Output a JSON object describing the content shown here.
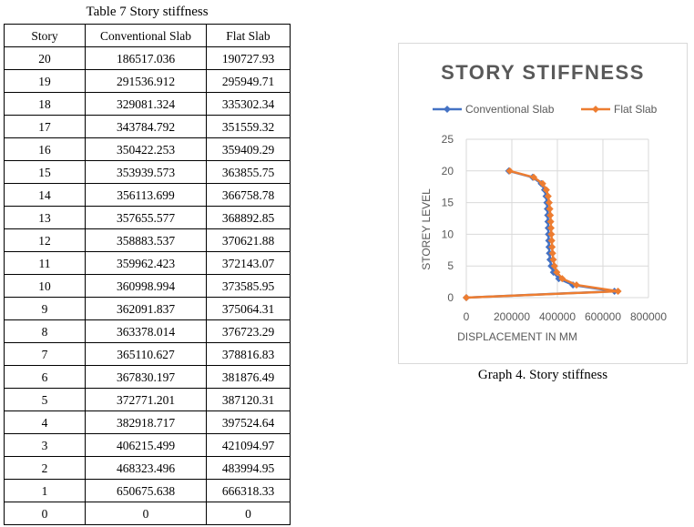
{
  "table": {
    "caption": "Table 7 Story stiffness",
    "headers": [
      "Story",
      "Conventional Slab",
      "Flat Slab"
    ],
    "rows": [
      [
        "20",
        "186517.036",
        "190727.93"
      ],
      [
        "19",
        "291536.912",
        "295949.71"
      ],
      [
        "18",
        "329081.324",
        "335302.34"
      ],
      [
        "17",
        "343784.792",
        "351559.32"
      ],
      [
        "16",
        "350422.253",
        "359409.29"
      ],
      [
        "15",
        "353939.573",
        "363855.75"
      ],
      [
        "14",
        "356113.699",
        "366758.78"
      ],
      [
        "13",
        "357655.577",
        "368892.85"
      ],
      [
        "12",
        "358883.537",
        "370621.88"
      ],
      [
        "11",
        "359962.423",
        "372143.07"
      ],
      [
        "10",
        "360998.994",
        "373585.95"
      ],
      [
        "9",
        "362091.837",
        "375064.31"
      ],
      [
        "8",
        "363378.014",
        "376723.29"
      ],
      [
        "7",
        "365110.627",
        "378816.83"
      ],
      [
        "6",
        "367830.197",
        "381876.49"
      ],
      [
        "5",
        "372771.201",
        "387120.31"
      ],
      [
        "4",
        "382918.717",
        "397524.64"
      ],
      [
        "3",
        "406215.499",
        "421094.97"
      ],
      [
        "2",
        "468323.496",
        "483994.95"
      ],
      [
        "1",
        "650675.638",
        "666318.33"
      ],
      [
        "0",
        "0",
        "0"
      ]
    ]
  },
  "chart_caption": "Graph 4. Story stiffness",
  "chart_data": {
    "type": "scatter",
    "title": "STORY STIFFNESS",
    "xlabel": "DISPLACEMENT IN MM",
    "ylabel": "STOREY LEVEL",
    "xlim": [
      0,
      800000
    ],
    "ylim": [
      0,
      25
    ],
    "xticks": [
      "0",
      "200000",
      "400000",
      "600000",
      "800000"
    ],
    "yticks": [
      "0",
      "5",
      "10",
      "15",
      "20",
      "25"
    ],
    "grid": true,
    "legend": "top",
    "series": [
      {
        "name": "Conventional Slab",
        "color": "#4472C4",
        "marker": "diamond",
        "points": [
          [
            186517.036,
            20
          ],
          [
            291536.912,
            19
          ],
          [
            329081.324,
            18
          ],
          [
            343784.792,
            17
          ],
          [
            350422.253,
            16
          ],
          [
            353939.573,
            15
          ],
          [
            356113.699,
            14
          ],
          [
            357655.577,
            13
          ],
          [
            358883.537,
            12
          ],
          [
            359962.423,
            11
          ],
          [
            360998.994,
            10
          ],
          [
            362091.837,
            9
          ],
          [
            363378.014,
            8
          ],
          [
            365110.627,
            7
          ],
          [
            367830.197,
            6
          ],
          [
            372771.201,
            5
          ],
          [
            382918.717,
            4
          ],
          [
            406215.499,
            3
          ],
          [
            468323.496,
            2
          ],
          [
            650675.638,
            1
          ],
          [
            0,
            0
          ]
        ]
      },
      {
        "name": "Flat Slab",
        "color": "#ED7D31",
        "marker": "diamond",
        "points": [
          [
            190727.93,
            20
          ],
          [
            295949.71,
            19
          ],
          [
            335302.34,
            18
          ],
          [
            351559.32,
            17
          ],
          [
            359409.29,
            16
          ],
          [
            363855.75,
            15
          ],
          [
            366758.78,
            14
          ],
          [
            368892.85,
            13
          ],
          [
            370621.88,
            12
          ],
          [
            372143.07,
            11
          ],
          [
            373585.95,
            10
          ],
          [
            375064.31,
            9
          ],
          [
            376723.29,
            8
          ],
          [
            378816.83,
            7
          ],
          [
            381876.49,
            6
          ],
          [
            387120.31,
            5
          ],
          [
            397524.64,
            4
          ],
          [
            421094.97,
            3
          ],
          [
            483994.95,
            2
          ],
          [
            666318.33,
            1
          ],
          [
            0,
            0
          ]
        ]
      }
    ]
  }
}
